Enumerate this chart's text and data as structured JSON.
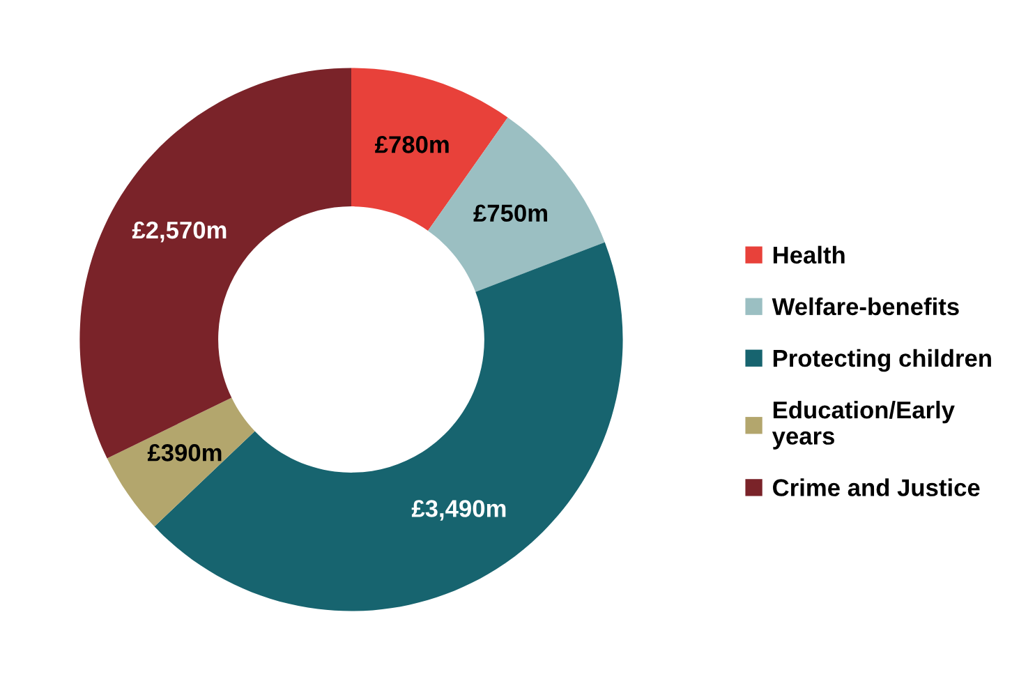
{
  "chart_data": {
    "type": "donut",
    "categories": [
      "Health",
      "Welfare-benefits",
      "Protecting children",
      "Education/Early\nyears",
      "Crime and Justice"
    ],
    "values": [
      780,
      750,
      3490,
      390,
      2570
    ],
    "value_labels": [
      "£780m",
      "£750m",
      "£3,490m",
      "£390m",
      "£2,570m"
    ],
    "colors": [
      "#e8413a",
      "#9bbfc2",
      "#17646f",
      "#b3a66d",
      "#7a2329"
    ],
    "legend": "right"
  }
}
